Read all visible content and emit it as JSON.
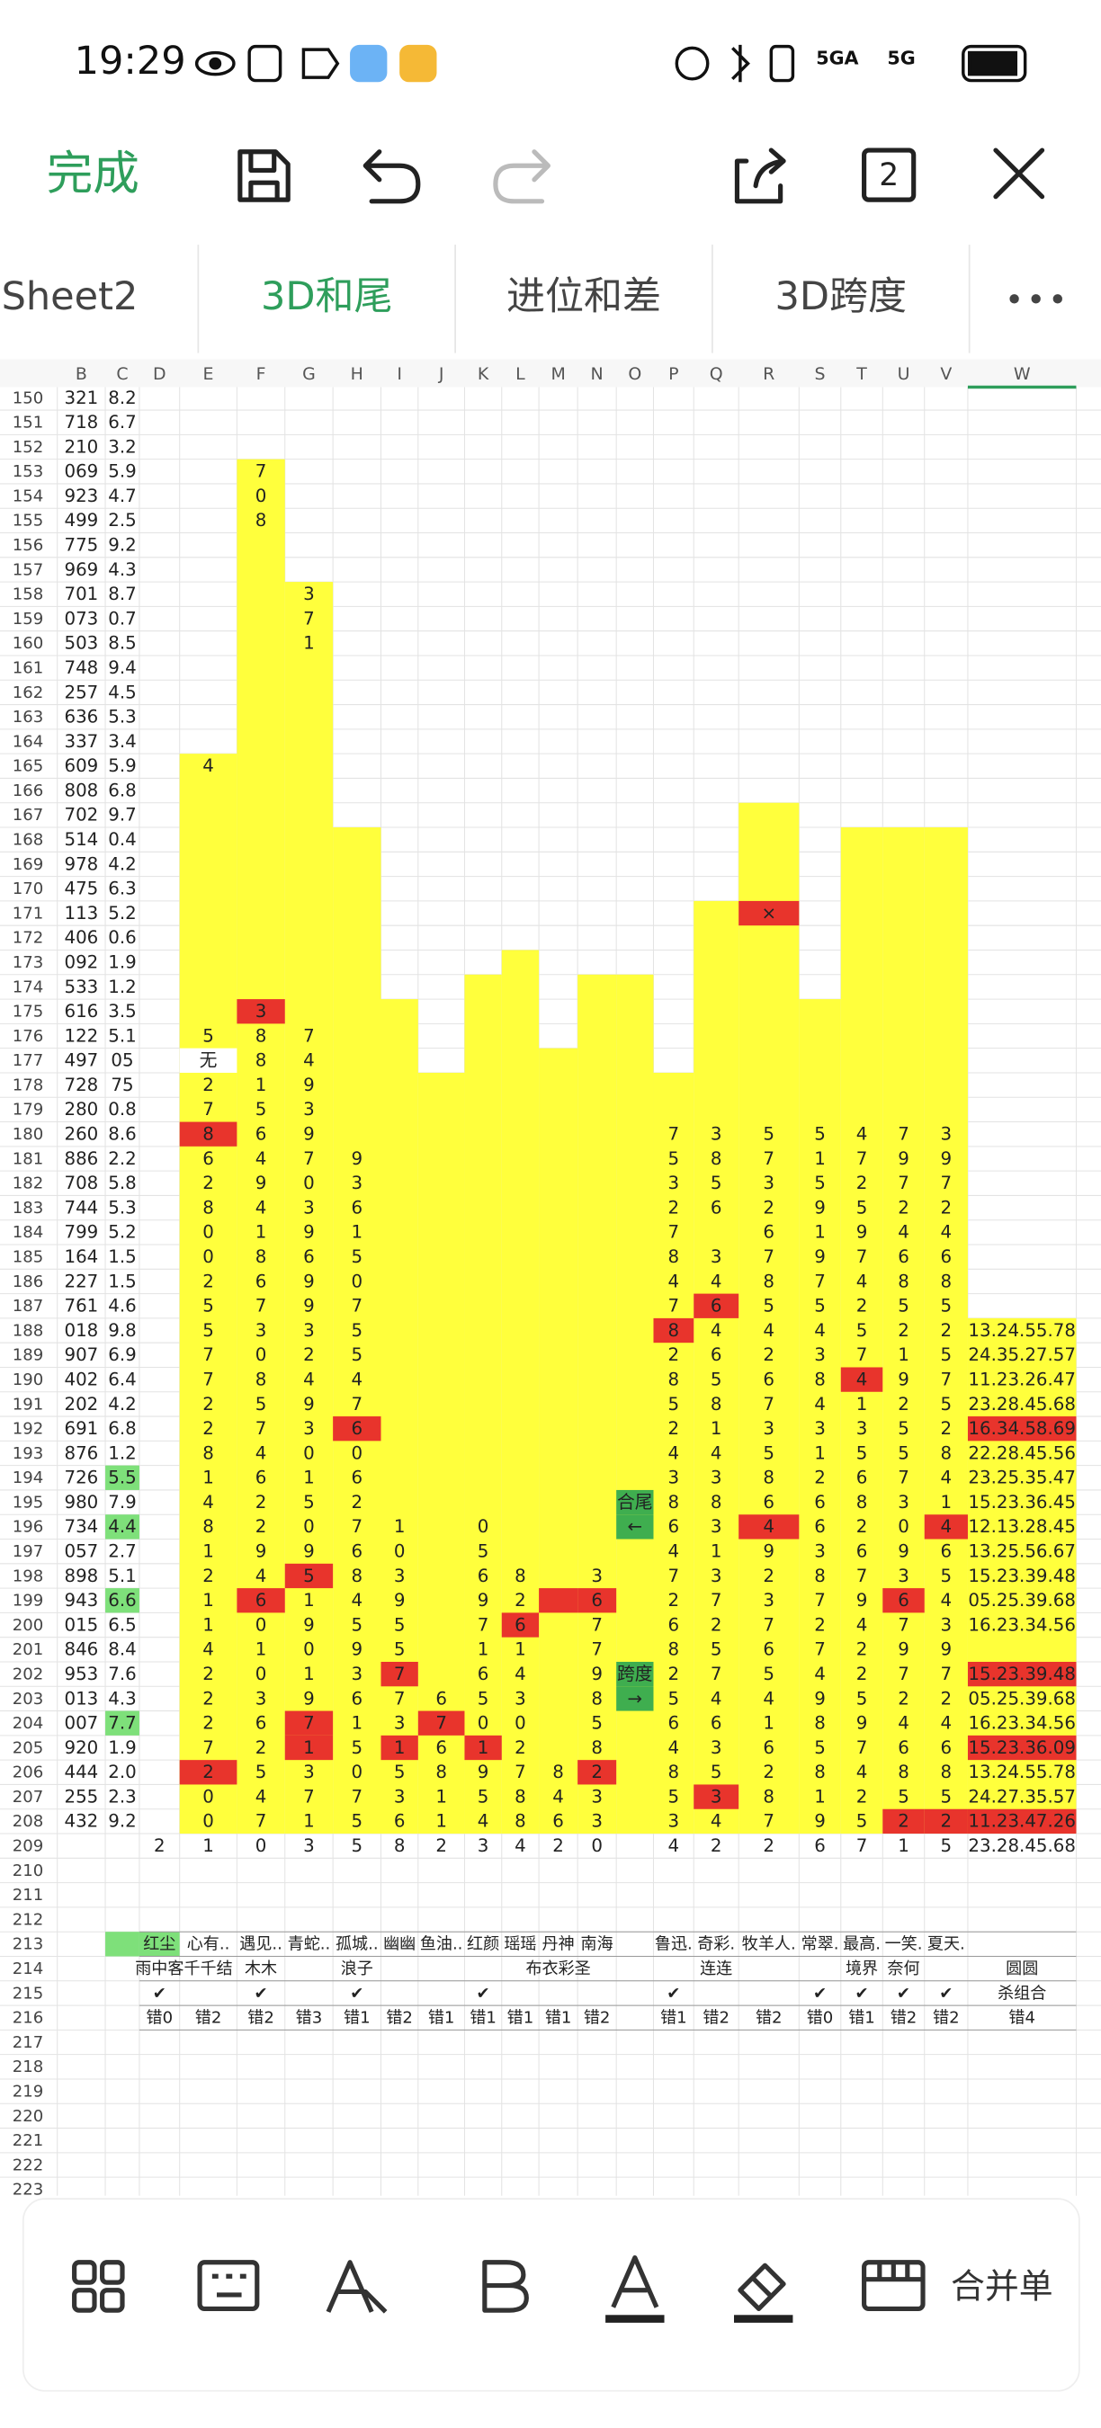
{
  "status": {
    "time": "19:29",
    "network": [
      "5GA",
      "5G"
    ]
  },
  "toolbar": {
    "done": "完成",
    "window_count": "2"
  },
  "tabs": [
    "Sheet2",
    "3D和尾",
    "进位和差",
    "3D跨度"
  ],
  "bottom": {
    "merge": "合并单"
  },
  "sheet": {
    "columns": [
      "B",
      "C",
      "D",
      "E",
      "F",
      "G",
      "H",
      "I",
      "J",
      "K",
      "L",
      "M",
      "N",
      "O",
      "P",
      "Q",
      "R",
      "S",
      "T",
      "U",
      "V",
      "W"
    ],
    "red": [
      "F175",
      "E180",
      "R171",
      "Q187",
      "P188",
      "T190",
      "H192",
      "W192",
      "R196",
      "V196",
      "G198",
      "F199",
      "M199",
      "N199",
      "U199",
      "L200",
      "I202",
      "W202",
      "G204",
      "J204",
      "G205",
      "I205",
      "K205",
      "W205",
      "E206",
      "N206",
      "Q207",
      "U208",
      "V208",
      "W208"
    ],
    "green": [
      "C194",
      "C196",
      "C199",
      "C204",
      "C213",
      "D213"
    ],
    "dark_green": [
      "O195",
      "O196",
      "O202",
      "O203"
    ],
    "white": [
      "E177"
    ],
    "rows": [
      {
        "n": "150",
        "B": "321",
        "C": "8.2"
      },
      {
        "n": "151",
        "B": "718",
        "C": "6.7"
      },
      {
        "n": "152",
        "B": "210",
        "C": "3.2"
      },
      {
        "n": "153",
        "B": "069",
        "C": "5.9",
        "F": "7"
      },
      {
        "n": "154",
        "B": "923",
        "C": "4.7",
        "F": "0"
      },
      {
        "n": "155",
        "B": "499",
        "C": "2.5",
        "F": "8"
      },
      {
        "n": "156",
        "B": "775",
        "C": "9.2"
      },
      {
        "n": "157",
        "B": "969",
        "C": "4.3"
      },
      {
        "n": "158",
        "B": "701",
        "C": "8.7",
        "G": "3"
      },
      {
        "n": "159",
        "B": "073",
        "C": "0.7",
        "G": "7"
      },
      {
        "n": "160",
        "B": "503",
        "C": "8.5",
        "G": "1"
      },
      {
        "n": "161",
        "B": "748",
        "C": "9.4"
      },
      {
        "n": "162",
        "B": "257",
        "C": "4.5"
      },
      {
        "n": "163",
        "B": "636",
        "C": "5.3"
      },
      {
        "n": "164",
        "B": "337",
        "C": "3.4"
      },
      {
        "n": "165",
        "B": "609",
        "C": "5.9",
        "E": "4"
      },
      {
        "n": "166",
        "B": "808",
        "C": "6.8"
      },
      {
        "n": "167",
        "B": "702",
        "C": "9.7"
      },
      {
        "n": "168",
        "B": "514",
        "C": "0.4"
      },
      {
        "n": "169",
        "B": "978",
        "C": "4.2"
      },
      {
        "n": "170",
        "B": "475",
        "C": "6.3"
      },
      {
        "n": "171",
        "B": "113",
        "C": "5.2",
        "R": "×"
      },
      {
        "n": "172",
        "B": "406",
        "C": "0.6"
      },
      {
        "n": "173",
        "B": "092",
        "C": "1.9"
      },
      {
        "n": "174",
        "B": "533",
        "C": "1.2"
      },
      {
        "n": "175",
        "B": "616",
        "C": "3.5",
        "F": "3"
      },
      {
        "n": "176",
        "B": "122",
        "C": "5.1",
        "E": "5",
        "F": "8",
        "G": "7"
      },
      {
        "n": "177",
        "B": "497",
        "C": "05",
        "E": "无",
        "F": "8",
        "G": "4"
      },
      {
        "n": "178",
        "B": "728",
        "C": "75",
        "E": "2",
        "F": "1",
        "G": "9"
      },
      {
        "n": "179",
        "B": "280",
        "C": "0.8",
        "E": "7",
        "F": "5",
        "G": "3"
      },
      {
        "n": "180",
        "B": "260",
        "C": "8.6",
        "E": "8",
        "F": "6",
        "G": "9",
        "P": "7",
        "Q": "3",
        "R": "5",
        "S": "5",
        "T": "4",
        "U": "7",
        "V": "3"
      },
      {
        "n": "181",
        "B": "886",
        "C": "2.2",
        "E": "6",
        "F": "4",
        "G": "7",
        "H": "9",
        "P": "5",
        "Q": "8",
        "R": "7",
        "S": "1",
        "T": "7",
        "U": "9",
        "V": "9"
      },
      {
        "n": "182",
        "B": "708",
        "C": "5.8",
        "E": "2",
        "F": "9",
        "G": "0",
        "H": "3",
        "P": "3",
        "Q": "5",
        "R": "3",
        "S": "5",
        "T": "2",
        "U": "7",
        "V": "7"
      },
      {
        "n": "183",
        "B": "744",
        "C": "5.3",
        "E": "8",
        "F": "4",
        "G": "3",
        "H": "6",
        "P": "2",
        "Q": "6",
        "R": "2",
        "S": "9",
        "T": "5",
        "U": "2",
        "V": "2"
      },
      {
        "n": "184",
        "B": "799",
        "C": "5.2",
        "E": "0",
        "F": "1",
        "G": "9",
        "H": "1",
        "P": "7",
        "R": "6",
        "S": "1",
        "T": "9",
        "U": "4",
        "V": "4"
      },
      {
        "n": "185",
        "B": "164",
        "C": "1.5",
        "E": "0",
        "F": "8",
        "G": "6",
        "H": "5",
        "P": "8",
        "Q": "3",
        "R": "7",
        "S": "9",
        "T": "7",
        "U": "6",
        "V": "6"
      },
      {
        "n": "186",
        "B": "227",
        "C": "1.5",
        "E": "2",
        "F": "6",
        "G": "9",
        "H": "0",
        "P": "4",
        "Q": "4",
        "R": "8",
        "S": "7",
        "T": "4",
        "U": "8",
        "V": "8"
      },
      {
        "n": "187",
        "B": "761",
        "C": "4.6",
        "E": "5",
        "F": "7",
        "G": "9",
        "H": "7",
        "P": "7",
        "Q": "6",
        "R": "5",
        "S": "5",
        "T": "2",
        "U": "5",
        "V": "5"
      },
      {
        "n": "188",
        "B": "018",
        "C": "9.8",
        "E": "5",
        "F": "3",
        "G": "3",
        "H": "5",
        "P": "8",
        "Q": "4",
        "R": "4",
        "S": "4",
        "T": "5",
        "U": "2",
        "V": "2",
        "W": "13.24.55.78"
      },
      {
        "n": "189",
        "B": "907",
        "C": "6.9",
        "E": "7",
        "F": "0",
        "G": "2",
        "H": "5",
        "P": "2",
        "Q": "6",
        "R": "2",
        "S": "3",
        "T": "7",
        "U": "1",
        "V": "5",
        "W": "24.35.27.57"
      },
      {
        "n": "190",
        "B": "402",
        "C": "6.4",
        "E": "7",
        "F": "8",
        "G": "4",
        "H": "4",
        "P": "8",
        "Q": "5",
        "R": "6",
        "S": "8",
        "T": "4",
        "U": "9",
        "V": "7",
        "W": "11.23.26.47"
      },
      {
        "n": "191",
        "B": "202",
        "C": "4.2",
        "E": "2",
        "F": "5",
        "G": "9",
        "H": "7",
        "P": "5",
        "Q": "8",
        "R": "7",
        "S": "4",
        "T": "1",
        "U": "2",
        "V": "5",
        "W": "23.28.45.68"
      },
      {
        "n": "192",
        "B": "691",
        "C": "6.8",
        "E": "2",
        "F": "7",
        "G": "3",
        "H": "6",
        "P": "2",
        "Q": "1",
        "R": "3",
        "S": "3",
        "T": "3",
        "U": "5",
        "V": "2",
        "W": "16.34.58.69"
      },
      {
        "n": "193",
        "B": "876",
        "C": "1.2",
        "E": "8",
        "F": "4",
        "G": "0",
        "H": "0",
        "P": "4",
        "Q": "4",
        "R": "5",
        "S": "1",
        "T": "5",
        "U": "5",
        "V": "8",
        "W": "22.28.45.56"
      },
      {
        "n": "194",
        "B": "726",
        "C": "5.5",
        "E": "1",
        "F": "6",
        "G": "1",
        "H": "6",
        "P": "3",
        "Q": "3",
        "R": "8",
        "S": "2",
        "T": "6",
        "U": "7",
        "V": "4",
        "W": "23.25.35.47"
      },
      {
        "n": "195",
        "B": "980",
        "C": "7.9",
        "E": "4",
        "F": "2",
        "G": "5",
        "H": "2",
        "O": "合尾",
        "P": "8",
        "Q": "8",
        "R": "6",
        "S": "6",
        "T": "8",
        "U": "3",
        "V": "1",
        "W": "15.23.36.45"
      },
      {
        "n": "196",
        "B": "734",
        "C": "4.4",
        "E": "8",
        "F": "2",
        "G": "0",
        "H": "7",
        "I": "1",
        "K": "0",
        "O": "←",
        "P": "6",
        "Q": "3",
        "R": "4",
        "S": "6",
        "T": "2",
        "U": "0",
        "V": "4",
        "W": "12.13.28.45"
      },
      {
        "n": "197",
        "B": "057",
        "C": "2.7",
        "E": "1",
        "F": "9",
        "G": "9",
        "H": "6",
        "I": "0",
        "K": "5",
        "P": "4",
        "Q": "1",
        "R": "9",
        "S": "3",
        "T": "6",
        "U": "9",
        "V": "6",
        "W": "13.25.56.67"
      },
      {
        "n": "198",
        "B": "898",
        "C": "5.1",
        "E": "2",
        "F": "4",
        "G": "5",
        "H": "8",
        "I": "3",
        "K": "6",
        "L": "8",
        "N": "3",
        "P": "7",
        "Q": "3",
        "R": "2",
        "S": "8",
        "T": "7",
        "U": "3",
        "V": "5",
        "W": "15.23.39.48"
      },
      {
        "n": "199",
        "B": "943",
        "C": "6.6",
        "E": "1",
        "F": "6",
        "G": "1",
        "H": "4",
        "I": "9",
        "K": "9",
        "L": "2",
        "N": "6",
        "P": "2",
        "Q": "7",
        "R": "3",
        "S": "7",
        "T": "9",
        "U": "6",
        "V": "4",
        "W": "05.25.39.68"
      },
      {
        "n": "200",
        "B": "015",
        "C": "6.5",
        "E": "1",
        "F": "0",
        "G": "9",
        "H": "5",
        "I": "5",
        "K": "7",
        "L": "6",
        "N": "7",
        "P": "6",
        "Q": "2",
        "R": "7",
        "S": "2",
        "T": "4",
        "U": "7",
        "V": "3",
        "W": "16.23.34.56"
      },
      {
        "n": "201",
        "B": "846",
        "C": "8.4",
        "E": "4",
        "F": "1",
        "G": "0",
        "H": "9",
        "I": "5",
        "K": "1",
        "L": "1",
        "N": "7",
        "P": "8",
        "Q": "5",
        "R": "6",
        "S": "7",
        "T": "2",
        "U": "9",
        "V": "9"
      },
      {
        "n": "202",
        "B": "953",
        "C": "7.6",
        "E": "2",
        "F": "0",
        "G": "1",
        "H": "3",
        "I": "7",
        "K": "6",
        "L": "4",
        "N": "9",
        "O": "跨度",
        "P": "2",
        "Q": "7",
        "R": "5",
        "S": "4",
        "T": "2",
        "U": "7",
        "V": "7",
        "W": "15.23.39.48"
      },
      {
        "n": "203",
        "B": "013",
        "C": "4.3",
        "E": "2",
        "F": "3",
        "G": "9",
        "H": "6",
        "I": "7",
        "J": "6",
        "K": "5",
        "L": "3",
        "N": "8",
        "O": "→",
        "P": "5",
        "Q": "4",
        "R": "4",
        "S": "9",
        "T": "5",
        "U": "2",
        "V": "2",
        "W": "05.25.39.68"
      },
      {
        "n": "204",
        "B": "007",
        "C": "7.7",
        "E": "2",
        "F": "6",
        "G": "7",
        "H": "1",
        "I": "3",
        "J": "7",
        "K": "0",
        "L": "0",
        "N": "5",
        "P": "6",
        "Q": "6",
        "R": "1",
        "S": "8",
        "T": "9",
        "U": "4",
        "V": "4",
        "W": "16.23.34.56"
      },
      {
        "n": "205",
        "B": "920",
        "C": "1.9",
        "E": "7",
        "F": "2",
        "G": "1",
        "H": "5",
        "I": "1",
        "J": "6",
        "K": "1",
        "L": "2",
        "N": "8",
        "P": "4",
        "Q": "3",
        "R": "6",
        "S": "5",
        "T": "7",
        "U": "6",
        "V": "6",
        "W": "15.23.36.09"
      },
      {
        "n": "206",
        "B": "444",
        "C": "2.0",
        "E": "2",
        "F": "5",
        "G": "3",
        "H": "0",
        "I": "5",
        "J": "8",
        "K": "9",
        "L": "7",
        "M": "8",
        "N": "2",
        "P": "8",
        "Q": "5",
        "R": "2",
        "S": "8",
        "T": "4",
        "U": "8",
        "V": "8",
        "W": "13.24.55.78"
      },
      {
        "n": "207",
        "B": "255",
        "C": "2.3",
        "E": "0",
        "F": "4",
        "G": "7",
        "H": "7",
        "I": "3",
        "J": "1",
        "K": "5",
        "L": "8",
        "M": "4",
        "N": "3",
        "P": "5",
        "Q": "3",
        "R": "8",
        "S": "1",
        "T": "2",
        "U": "5",
        "V": "5",
        "W": "24.27.35.57"
      },
      {
        "n": "208",
        "B": "432",
        "C": "9.2",
        "E": "0",
        "F": "7",
        "G": "1",
        "H": "5",
        "I": "6",
        "J": "1",
        "K": "4",
        "L": "8",
        "M": "6",
        "N": "3",
        "P": "3",
        "Q": "4",
        "R": "7",
        "S": "9",
        "T": "5",
        "U": "2",
        "V": "2",
        "W": "11.23.47.26"
      },
      {
        "n": "209",
        "D": "2",
        "E": "1",
        "F": "0",
        "G": "3",
        "H": "5",
        "I": "8",
        "J": "2",
        "K": "3",
        "L": "4",
        "M": "2",
        "N": "0",
        "P": "4",
        "Q": "2",
        "R": "2",
        "S": "6",
        "T": "7",
        "U": "1",
        "V": "5",
        "W": "23.28.45.68"
      },
      {
        "n": "210"
      },
      {
        "n": "211"
      },
      {
        "n": "212"
      },
      {
        "n": "213",
        "D": "红尘",
        "E": "心有..",
        "F": "遇见..",
        "G": "青蛇..",
        "H": "孤城..",
        "I": "幽幽",
        "J": "鱼油..",
        "K": "红颜",
        "L": "瑶瑶",
        "M": "丹神",
        "N": "南海",
        "P": "鲁迅.",
        "Q": "奇彩.",
        "R": "牧羊人.",
        "S": "常翠.",
        "T": "最高.",
        "U": "一笑.",
        "V": "夏天."
      },
      {
        "n": "214",
        "D": "雨中客",
        "E": "千千结",
        "F": "木木",
        "H": "浪子",
        "M": "布衣彩圣",
        "Q": "连连",
        "T": "境界",
        "U": "奈何",
        "W": "圆圆"
      },
      {
        "n": "215",
        "D": "✔",
        "F": "✔",
        "H": "✔",
        "K": "✔",
        "P": "✔",
        "S": "✔",
        "T": "✔",
        "U": "✔",
        "V": "✔",
        "W": "杀组合"
      },
      {
        "n": "216",
        "D": "错0",
        "E": "错2",
        "F": "错2",
        "G": "错3",
        "H": "错1",
        "I": "错2",
        "J": "错1",
        "K": "错1",
        "L": "错1",
        "M": "错1",
        "N": "错2",
        "P": "错1",
        "Q": "错2",
        "R": "错2",
        "S": "错0",
        "T": "错1",
        "U": "错2",
        "V": "错2",
        "W": "错4"
      },
      {
        "n": "217"
      },
      {
        "n": "218"
      },
      {
        "n": "219"
      },
      {
        "n": "220"
      },
      {
        "n": "221"
      },
      {
        "n": "222"
      },
      {
        "n": "223"
      }
    ]
  }
}
